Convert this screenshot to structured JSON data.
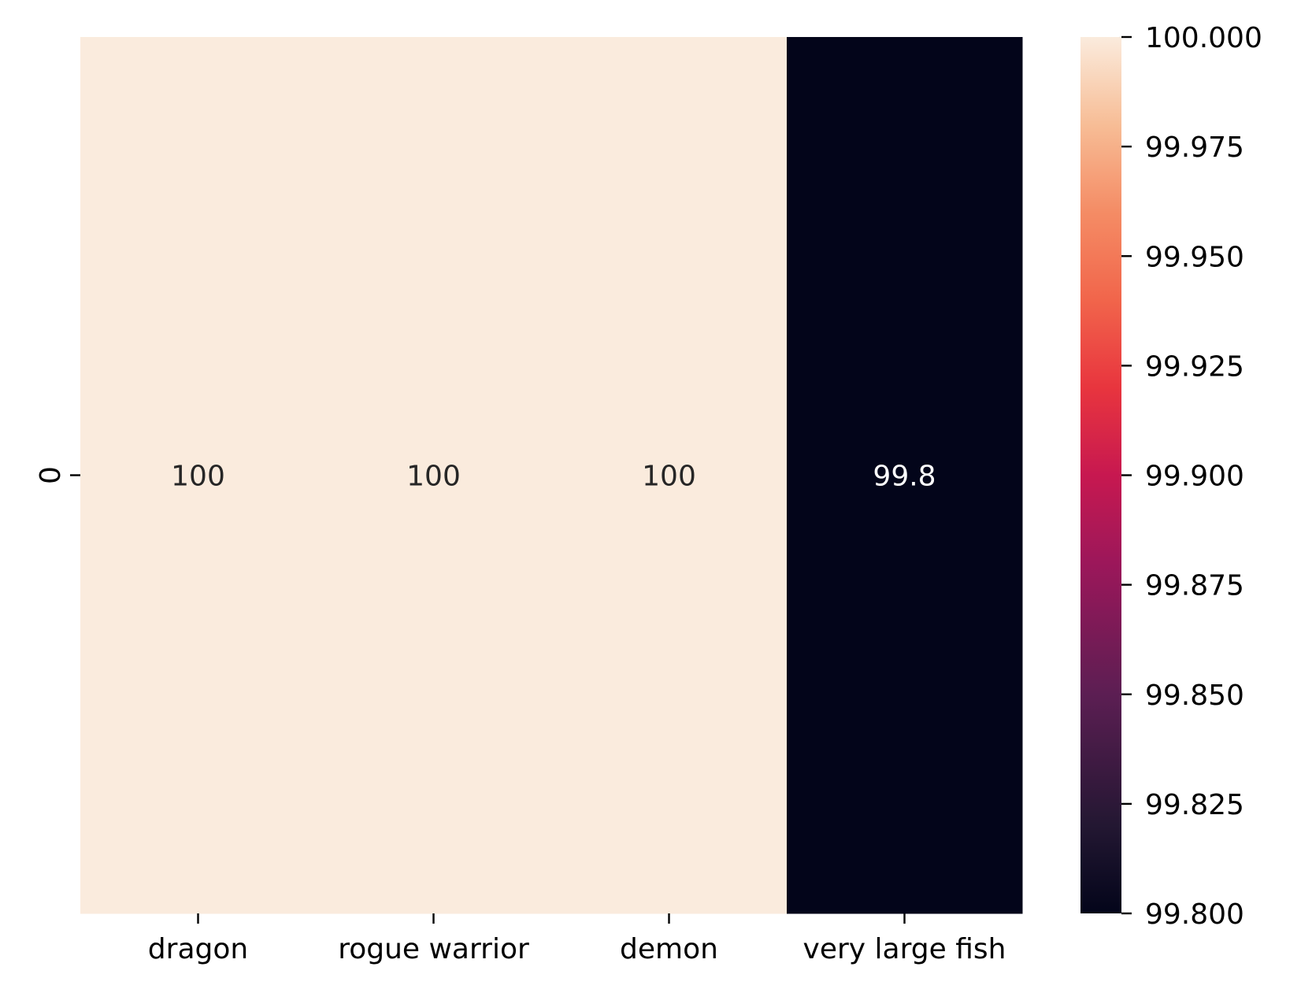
{
  "chart_data": {
    "type": "heatmap",
    "title": "",
    "xlabel": "",
    "ylabel": "",
    "x_categories": [
      "dragon",
      "rogue warrior",
      "demon",
      "very large fish"
    ],
    "y_categories": [
      "0"
    ],
    "values": [
      [
        100,
        100,
        100,
        99.8
      ]
    ],
    "cell_labels": [
      [
        "100",
        "100",
        "100",
        "99.8"
      ]
    ],
    "colorbar": {
      "range": [
        99.8,
        100.0
      ],
      "ticks": [
        99.8,
        99.825,
        99.85,
        99.875,
        99.9,
        99.925,
        99.95,
        99.975,
        100.0
      ],
      "tick_labels": [
        "99.800",
        "99.825",
        "99.850",
        "99.875",
        "99.900",
        "99.925",
        "99.950",
        "99.975",
        "100.000"
      ]
    },
    "colormap": "rocket",
    "colors": {
      "low": "#03051a",
      "high": "#faebdd",
      "label_on_dark": "#ffffff",
      "label_on_light": "#262626",
      "tick": "#000000"
    }
  }
}
